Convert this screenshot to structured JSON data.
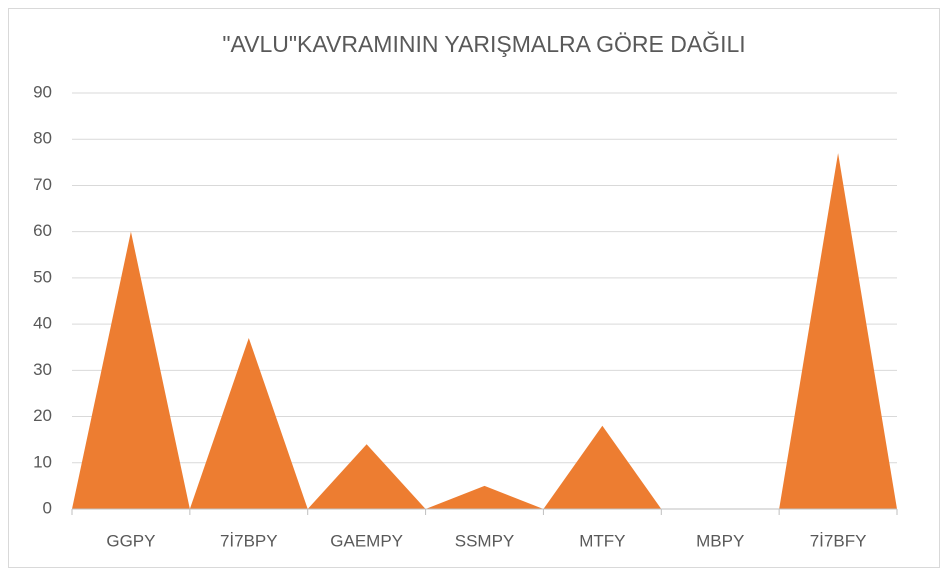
{
  "chart_data": {
    "type": "bar",
    "bar_shape": "triangle",
    "title": "\"AVLU\"KAVRAMININ YARIŞMALRA GÖRE DAĞILI",
    "categories": [
      "GGPY",
      "7İ7BPY",
      "GAEMPY",
      "SSMPY",
      "MTFY",
      "MBPY",
      "7İ7BFY"
    ],
    "values": [
      60,
      37,
      14,
      5,
      18,
      0,
      77
    ],
    "color": "#ed7d31",
    "ylim": [
      0,
      90
    ],
    "yticks": [
      0,
      10,
      20,
      30,
      40,
      50,
      60,
      70,
      80,
      90
    ],
    "grid": true
  }
}
